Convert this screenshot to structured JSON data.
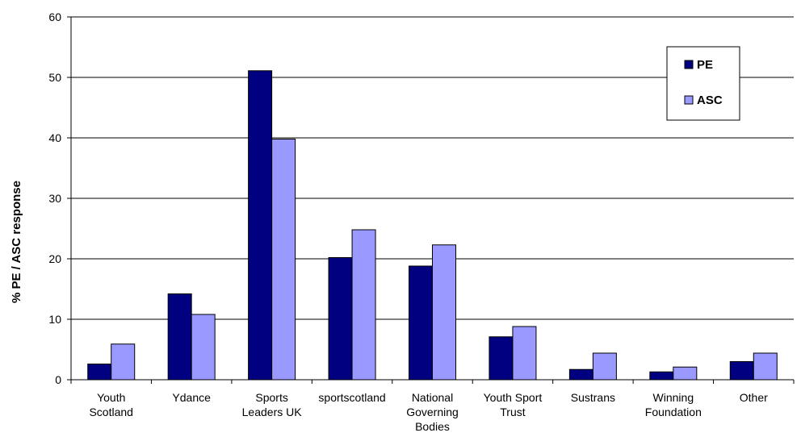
{
  "chart_data": {
    "type": "bar",
    "title": "",
    "xlabel": "",
    "ylabel": "% PE / ASC response",
    "ylim": [
      0,
      60
    ],
    "yticks": [
      0,
      10,
      20,
      30,
      40,
      50,
      60
    ],
    "grid": true,
    "legend_position": "top-right",
    "categories": [
      [
        "Youth",
        "Scotland"
      ],
      [
        "Ydance"
      ],
      [
        "Sports",
        "Leaders UK"
      ],
      [
        "sportscotland"
      ],
      [
        "National",
        "Governing",
        "Bodies"
      ],
      [
        "Youth Sport",
        "Trust"
      ],
      [
        "Sustrans"
      ],
      [
        "Winning",
        "Foundation"
      ],
      [
        "Other"
      ]
    ],
    "series": [
      {
        "name": "PE",
        "color": "#000080",
        "values": [
          2.6,
          14.2,
          51.1,
          20.2,
          18.8,
          7.1,
          1.7,
          1.3,
          3.0
        ]
      },
      {
        "name": "ASC",
        "color": "#9999ff",
        "values": [
          5.9,
          10.8,
          39.8,
          24.8,
          22.3,
          8.8,
          4.4,
          2.1,
          4.4
        ]
      }
    ]
  }
}
